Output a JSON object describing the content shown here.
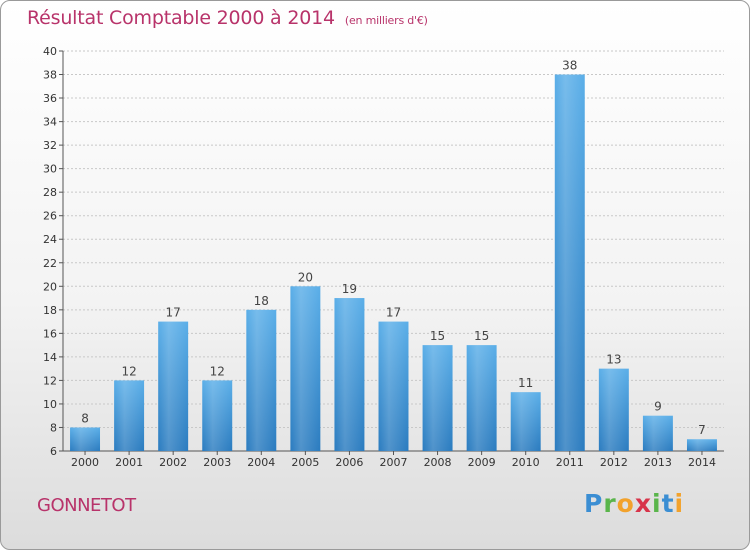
{
  "header": {
    "title": "Résultat Comptable 2000 à 2014",
    "unit": "(en milliers d'€)"
  },
  "footer": {
    "commune": "GONNETOT",
    "logo": "Proxiti"
  },
  "colors": {
    "bar_top": "#5aaee8",
    "bar_bottom": "#2a7bbf",
    "title": "#b8336a",
    "grid": "#c8c8c8"
  },
  "chart_data": {
    "type": "bar",
    "title": "Résultat Comptable 2000 à 2014",
    "subtitle": "(en milliers d'€)",
    "categories": [
      "2000",
      "2001",
      "2002",
      "2003",
      "2004",
      "2005",
      "2006",
      "2007",
      "2008",
      "2009",
      "2010",
      "2011",
      "2012",
      "2013",
      "2014"
    ],
    "values": [
      8,
      12,
      17,
      12,
      18,
      20,
      19,
      17,
      15,
      15,
      11,
      38,
      13,
      9,
      7
    ],
    "ylim": [
      6,
      40
    ],
    "yticks": [
      6,
      8,
      10,
      12,
      14,
      16,
      18,
      20,
      22,
      24,
      26,
      28,
      30,
      32,
      34,
      36,
      38,
      40
    ],
    "grid": true,
    "data_labels": true,
    "xlabel": "",
    "ylabel": ""
  }
}
